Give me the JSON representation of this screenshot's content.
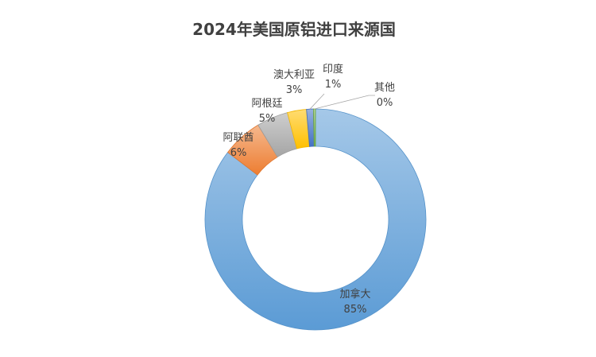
{
  "chart_data": {
    "type": "pie",
    "variant": "doughnut",
    "title": "2024年美国原铝进口来源国",
    "categories": [
      "加拿大",
      "阿联酋",
      "阿根廷",
      "澳大利亚",
      "印度",
      "其他"
    ],
    "values": [
      85,
      6,
      5,
      3,
      1,
      0
    ],
    "value_labels": [
      "85%",
      "6%",
      "5%",
      "3%",
      "1%",
      "0%"
    ],
    "colors": [
      "#5b9bd5",
      "#ed7d31",
      "#a5a5a5",
      "#ffc000",
      "#4472c4",
      "#70ad47"
    ],
    "legend": "none",
    "data_labels": "outside"
  }
}
